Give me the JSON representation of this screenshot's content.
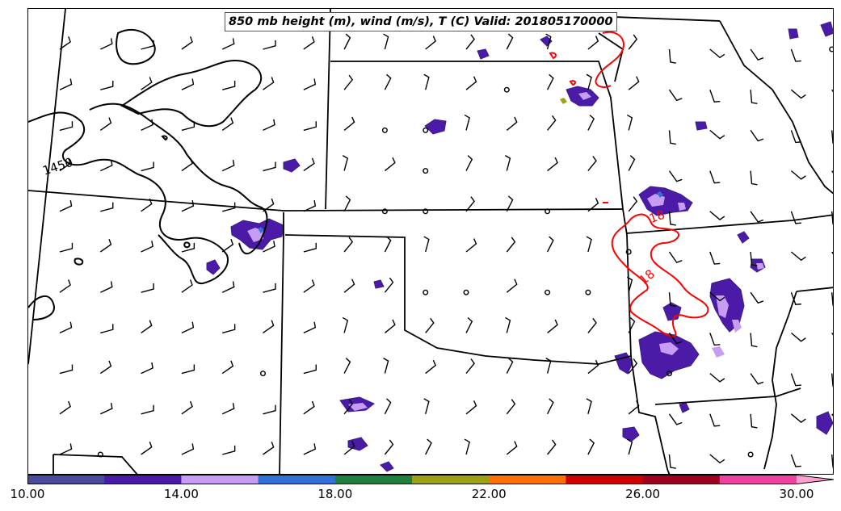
{
  "title": "850 mb height (m), wind (m/s), T (C) Valid: 201805170000",
  "contour_labels": {
    "height": "1450",
    "temp_1": "18",
    "temp_2": "18"
  },
  "colorbar": {
    "colors": [
      "#4b4b9b",
      "#4b1aa6",
      "#c79cf5",
      "#3170d6",
      "#1f7f3f",
      "#9da012",
      "#ff7000",
      "#d10000",
      "#a00020",
      "#f040a0",
      "#ffa0d0"
    ],
    "ticks": [
      "10.00",
      "14.00",
      "18.00",
      "22.00",
      "26.00",
      "30.00"
    ],
    "range": [
      10,
      31
    ]
  },
  "legend_colors": {
    "height_contour": "#000000",
    "temp_contour": "#ff0000"
  }
}
